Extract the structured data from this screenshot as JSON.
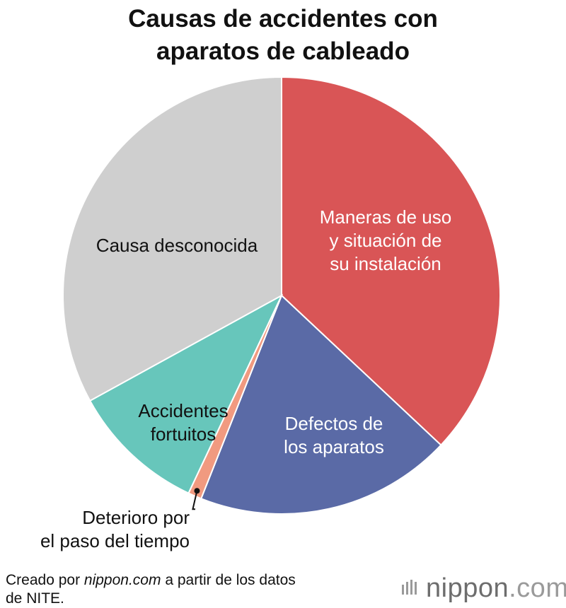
{
  "title": {
    "line1": "Causas de accidentes con",
    "line2": "aparatos de cableado"
  },
  "chart_data": {
    "type": "pie",
    "start_angle_deg": 0,
    "direction": "clockwise",
    "slices": [
      {
        "name": "Maneras de uso y situación de su instalación",
        "label_lines": [
          "Maneras de uso",
          "y situación de",
          "su instalación"
        ],
        "value": 37.0,
        "color": "#d95556",
        "text_color": "#ffffff"
      },
      {
        "name": "Defectos de los aparatos",
        "label_lines": [
          "Defectos de",
          "los aparatos"
        ],
        "value": 19.0,
        "color": "#5a6aa6",
        "text_color": "#ffffff"
      },
      {
        "name": "Deterioro por el paso del tiempo",
        "label_lines": [
          "Deterioro por",
          "el paso del tiempo"
        ],
        "value": 1.0,
        "color": "#f19a80",
        "text_color": "#111111",
        "callout": true
      },
      {
        "name": "Accidentes fortuitos",
        "label_lines": [
          "Accidentes",
          "fortuitos"
        ],
        "value": 10.0,
        "color": "#67c6bb",
        "text_color": "#111111"
      },
      {
        "name": "Causa desconocida",
        "label_lines": [
          "Causa desconocida"
        ],
        "value": 33.0,
        "color": "#cfcfcf",
        "text_color": "#111111"
      }
    ]
  },
  "footer": {
    "credit_prefix": "Creado por ",
    "credit_site": "nippon.com",
    "credit_suffix": " a partir de los datos",
    "credit_line2": "de NITE."
  },
  "logo": {
    "name": "nippon",
    "suffix": ".com",
    "icon": "nippon-bars-icon"
  }
}
